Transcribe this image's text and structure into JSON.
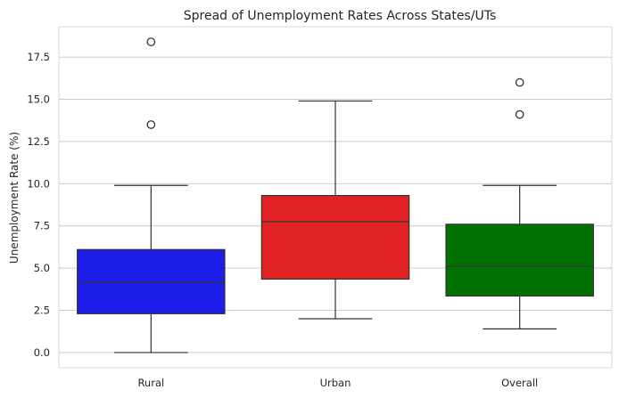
{
  "chart_data": {
    "type": "box",
    "title": "Spread of Unemployment Rates Across States/UTs",
    "xlabel": "",
    "ylabel": "Unemployment Rate (%)",
    "ylim": [
      -0.9,
      19.3
    ],
    "yticks": [
      0.0,
      2.5,
      5.0,
      7.5,
      10.0,
      12.5,
      15.0,
      17.5
    ],
    "ytick_labels": [
      "0.0",
      "2.5",
      "5.0",
      "7.5",
      "10.0",
      "12.5",
      "15.0",
      "17.5"
    ],
    "grid": true,
    "categories": [
      "Rural",
      "Urban",
      "Overall"
    ],
    "boxes": [
      {
        "category": "Rural",
        "color": "#1c1de8",
        "whisker_low": 0.0,
        "q1": 2.3,
        "median": 4.15,
        "q3": 6.1,
        "whisker_high": 9.9,
        "outliers": [
          13.5,
          18.4
        ]
      },
      {
        "category": "Urban",
        "color": "#e02224",
        "whisker_low": 2.0,
        "q1": 4.35,
        "median": 7.75,
        "q3": 9.3,
        "whisker_high": 14.9,
        "outliers": []
      },
      {
        "category": "Overall",
        "color": "#007100",
        "whisker_low": 1.4,
        "q1": 3.35,
        "median": 5.1,
        "q3": 7.6,
        "whisker_high": 9.9,
        "outliers": [
          14.1,
          16.0
        ]
      }
    ]
  }
}
